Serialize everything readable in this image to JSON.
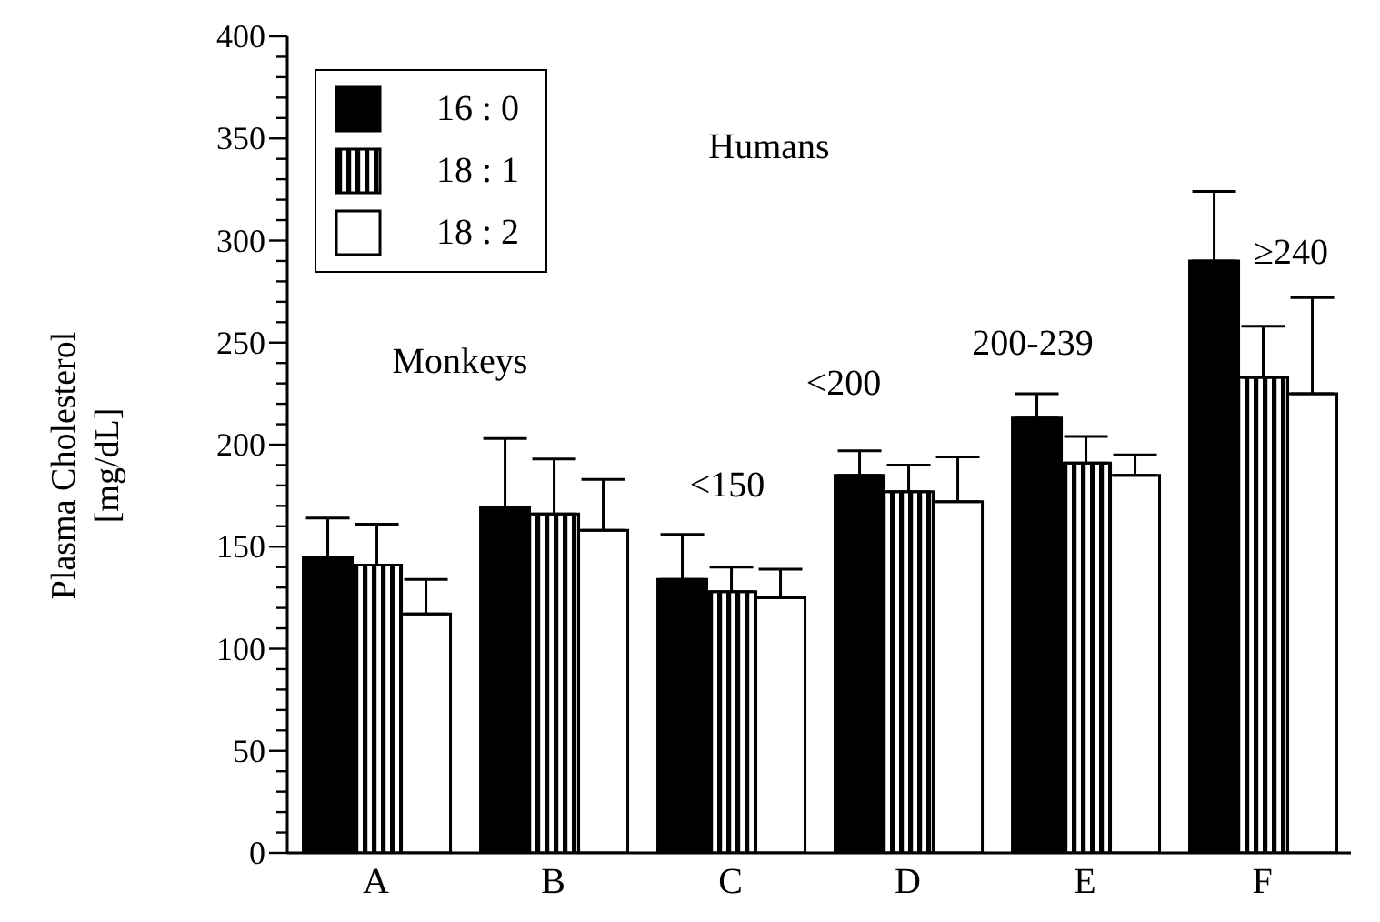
{
  "chart_data": {
    "type": "bar",
    "ylabel": "Plasma Cholesterol\n[mg/dL]",
    "categories": [
      "A",
      "B",
      "C",
      "D",
      "E",
      "F"
    ],
    "series": [
      {
        "name": "16 : 0",
        "color": "#000000",
        "values": [
          145,
          169,
          134,
          185,
          213,
          290
        ],
        "errors": [
          [
            145,
            164
          ],
          [
            169,
            203
          ],
          [
            134,
            156
          ],
          [
            185,
            197
          ],
          [
            213,
            225
          ],
          [
            290,
            324
          ]
        ]
      },
      {
        "name": "18 : 1",
        "color": "#000000",
        "values": [
          141,
          166,
          128,
          177,
          191,
          233
        ],
        "errors": [
          [
            141,
            161
          ],
          [
            166,
            193
          ],
          [
            128,
            140
          ],
          [
            177,
            190
          ],
          [
            191,
            204
          ],
          [
            233,
            258
          ]
        ]
      },
      {
        "name": "18 : 2",
        "color": "#ffffff",
        "values": [
          117,
          158,
          125,
          172,
          185,
          225
        ],
        "errors": [
          [
            117,
            134
          ],
          [
            158,
            183
          ],
          [
            125,
            139
          ],
          [
            172,
            194
          ],
          [
            185,
            195
          ],
          [
            225,
            272
          ]
        ]
      }
    ],
    "ylim": [
      0,
      400
    ],
    "yticks": [
      0,
      {
        "value": 10,
        "label": null
      },
      {
        "value": 20,
        "label": null
      },
      {
        "value": 30,
        "label": null
      },
      {
        "value": 40,
        "label": null
      },
      50,
      {
        "value": 60,
        "label": null
      },
      {
        "value": 70,
        "label": null
      },
      {
        "value": 80,
        "label": null
      },
      {
        "value": 90,
        "label": null
      },
      100,
      {
        "value": 110,
        "label": null
      },
      {
        "value": 120,
        "label": null
      },
      {
        "value": 130,
        "label": null
      },
      {
        "value": 140,
        "label": null
      },
      150,
      {
        "value": 160,
        "label": null
      },
      {
        "value": 170,
        "label": null
      },
      {
        "value": 180,
        "label": null
      },
      {
        "value": 190,
        "label": null
      },
      200,
      {
        "value": 210,
        "label": null
      },
      {
        "value": 220,
        "label": null
      },
      {
        "value": 230,
        "label": null
      },
      {
        "value": 240,
        "label": null
      },
      250,
      {
        "value": 260,
        "label": null
      },
      {
        "value": 270,
        "label": null
      },
      {
        "value": 280,
        "label": null
      },
      {
        "value": 290,
        "label": null
      },
      300,
      {
        "value": 310,
        "label": null
      },
      {
        "value": 320,
        "label": null
      },
      {
        "value": 330,
        "label": null
      },
      {
        "value": 340,
        "label": null
      },
      350,
      {
        "value": 360,
        "label": null
      },
      {
        "value": 370,
        "label": null
      },
      {
        "value": 380,
        "label": null
      },
      {
        "value": 390,
        "label": null
      },
      400
    ],
    "annotations": [
      "Monkeys",
      "Humans",
      "<150",
      "<200",
      "200-239",
      "≥240"
    ],
    "legend": "top left",
    "grid": false
  }
}
